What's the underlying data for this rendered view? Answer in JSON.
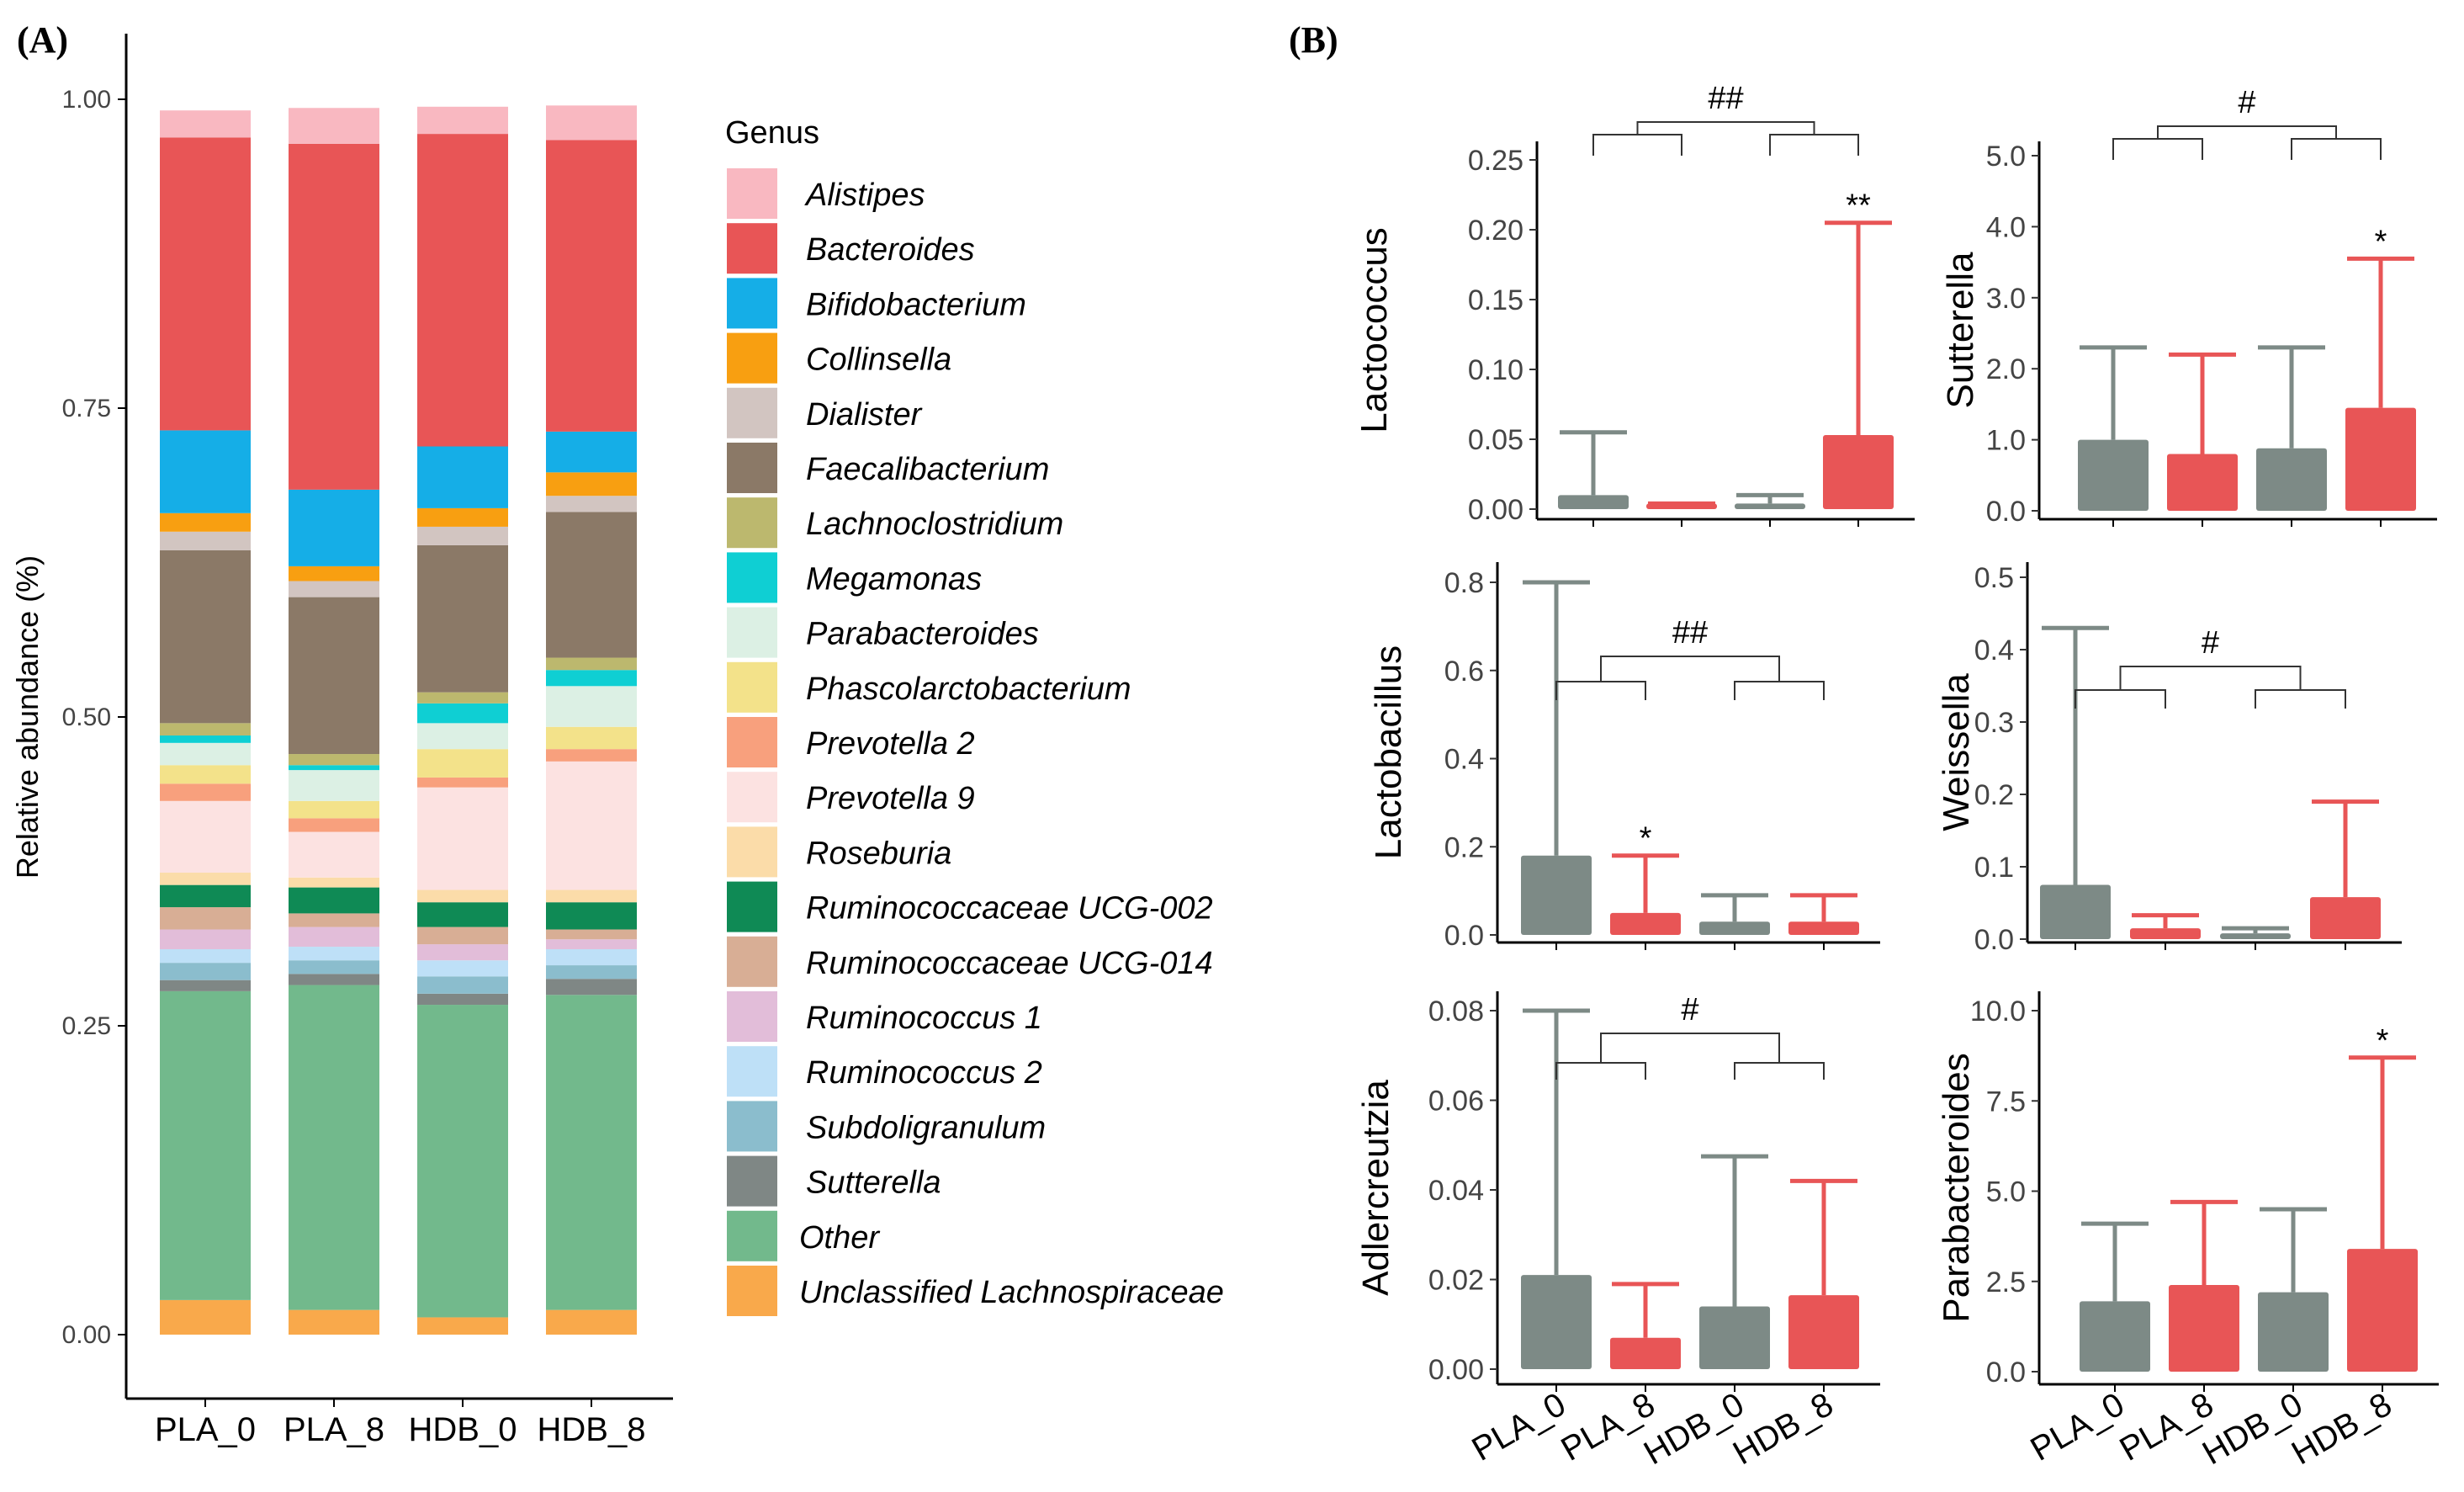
{
  "panels": {
    "a_label": "(A)",
    "b_label": "(B)"
  },
  "chart_data": [
    {
      "type": "bar",
      "stacked": true,
      "panel": "(A)",
      "ylabel": "Relative abundance (%)",
      "ylim": [
        0,
        1
      ],
      "yticks": [
        "0.00",
        "0.25",
        "0.50",
        "0.75",
        "1.00"
      ],
      "categories": [
        "PLA_0",
        "PLA_8",
        "HDB_0",
        "HDB_8"
      ],
      "legend_title": "Genus",
      "series": [
        {
          "name": "Unclassified  Lachnospiraceae",
          "color": "#F9A94B",
          "values": [
            0.028,
            0.02,
            0.014,
            0.02
          ]
        },
        {
          "name": "Other",
          "color": "#72B98C",
          "values": [
            0.25,
            0.263,
            0.253,
            0.255
          ]
        },
        {
          "name": "Sutterella",
          "color": "#7F8785",
          "values": [
            0.009,
            0.009,
            0.009,
            0.013
          ]
        },
        {
          "name": "Subdoligranulum",
          "color": "#8BBDCD",
          "values": [
            0.014,
            0.011,
            0.014,
            0.011
          ]
        },
        {
          "name": "Ruminococcus 2",
          "color": "#BEE0F7",
          "values": [
            0.011,
            0.011,
            0.013,
            0.013
          ]
        },
        {
          "name": "Ruminococcus 1",
          "color": "#E2BDD9",
          "values": [
            0.016,
            0.016,
            0.013,
            0.008
          ]
        },
        {
          "name": "Ruminococcaceae UCG-014",
          "color": "#D8AE95",
          "values": [
            0.018,
            0.011,
            0.014,
            0.008
          ]
        },
        {
          "name": "Ruminococcaceae UCG-002",
          "color": "#0F8A55",
          "values": [
            0.018,
            0.021,
            0.02,
            0.022
          ]
        },
        {
          "name": "Roseburia",
          "color": "#FBDCA9",
          "values": [
            0.01,
            0.008,
            0.01,
            0.01
          ]
        },
        {
          "name": "Prevotella 9",
          "color": "#FCE2E1",
          "values": [
            0.058,
            0.037,
            0.083,
            0.104
          ]
        },
        {
          "name": "Prevotella 2",
          "color": "#F8A07D",
          "values": [
            0.014,
            0.011,
            0.008,
            0.01
          ]
        },
        {
          "name": "Phascolarctobacterium",
          "color": "#F3E28A",
          "values": [
            0.015,
            0.014,
            0.023,
            0.018
          ]
        },
        {
          "name": "Parabacteroides",
          "color": "#DCF0E4",
          "values": [
            0.018,
            0.025,
            0.021,
            0.033
          ]
        },
        {
          "name": "Megamonas",
          "color": "#0FCFD3",
          "values": [
            0.006,
            0.004,
            0.016,
            0.013
          ]
        },
        {
          "name": "Lachnoclostridium",
          "color": "#BCB86E",
          "values": [
            0.01,
            0.009,
            0.009,
            0.01
          ]
        },
        {
          "name": "Faecalibacterium",
          "color": "#8B7967",
          "values": [
            0.14,
            0.127,
            0.119,
            0.118
          ]
        },
        {
          "name": "Dialister",
          "color": "#D2C5C1",
          "values": [
            0.015,
            0.013,
            0.015,
            0.013
          ]
        },
        {
          "name": "Collinsella",
          "color": "#F89F11",
          "values": [
            0.015,
            0.012,
            0.015,
            0.019
          ]
        },
        {
          "name": "Bifidobacterium",
          "color": "#15AEE7",
          "values": [
            0.067,
            0.062,
            0.05,
            0.033
          ]
        },
        {
          "name": "Bacteroides",
          "color": "#E85556",
          "values": [
            0.237,
            0.28,
            0.253,
            0.236
          ]
        },
        {
          "name": "Alistipes",
          "color": "#F9B8C1",
          "values": [
            0.022,
            0.029,
            0.022,
            0.028
          ]
        }
      ],
      "legend_order": [
        "Alistipes",
        "Bacteroides",
        "Bifidobacterium",
        "Collinsella",
        "Dialister",
        "Faecalibacterium",
        "Lachnoclostridium",
        "Megamonas",
        "Parabacteroides",
        "Phascolarctobacterium",
        "Prevotella 2",
        "Prevotella 9",
        "Roseburia",
        "Ruminococcaceae UCG-002",
        "Ruminococcaceae UCG-014",
        "Ruminococcus 1",
        "Ruminococcus 2",
        "Subdoligranulum",
        "Sutterella",
        "Other",
        "Unclassified  Lachnospiraceae"
      ]
    },
    {
      "type": "bar",
      "panel": "(B)",
      "ylabel": "Lactococcus",
      "ylim": [
        0,
        0.26
      ],
      "yticks": [
        "0.00",
        "0.05",
        "0.10",
        "0.15",
        "0.20",
        "0.25"
      ],
      "categories": [
        "PLA_0",
        "PLA_8",
        "HDB_0",
        "HDB_8"
      ],
      "values": [
        0.01,
        0.004,
        0.004,
        0.053
      ],
      "error_upper": [
        0.055,
        0.004,
        0.01,
        0.205
      ],
      "significance": {
        "bar_marks": [
          "",
          "",
          "",
          "**"
        ],
        "group": "##"
      }
    },
    {
      "type": "bar",
      "panel": "(B)",
      "ylabel": "Sutterella",
      "ylim": [
        0,
        5.2
      ],
      "yticks": [
        "0.0",
        "1.0",
        "2.0",
        "3.0",
        "4.0",
        "5.0"
      ],
      "categories": [
        "PLA_0",
        "PLA_8",
        "HDB_0",
        "HDB_8"
      ],
      "values": [
        1.0,
        0.8,
        0.88,
        1.45
      ],
      "error_upper": [
        2.3,
        2.2,
        2.3,
        3.55
      ],
      "significance": {
        "bar_marks": [
          "",
          "",
          "",
          "*"
        ],
        "group": "#"
      }
    },
    {
      "type": "bar",
      "panel": "(B)",
      "ylabel": "Lactobacillus",
      "ylim": [
        0,
        0.82
      ],
      "yticks": [
        "0.0",
        "0.2",
        "0.4",
        "0.6",
        "0.8"
      ],
      "categories": [
        "PLA_0",
        "PLA_8",
        "HDB_0",
        "HDB_8"
      ],
      "values": [
        0.18,
        0.05,
        0.03,
        0.03
      ],
      "error_upper": [
        0.8,
        0.18,
        0.09,
        0.09
      ],
      "significance": {
        "bar_marks": [
          "",
          "*",
          "",
          ""
        ],
        "group": "##"
      }
    },
    {
      "type": "bar",
      "panel": "(B)",
      "ylabel": "Weissella",
      "ylim": [
        0,
        0.52
      ],
      "yticks": [
        "0.0",
        "0.1",
        "0.2",
        "0.3",
        "0.4",
        "0.5"
      ],
      "categories": [
        "PLA_0",
        "PLA_8",
        "HDB_0",
        "HDB_8"
      ],
      "values": [
        0.075,
        0.015,
        0.008,
        0.058
      ],
      "error_upper": [
        0.43,
        0.033,
        0.015,
        0.19
      ],
      "significance": {
        "bar_marks": [
          "",
          "",
          "",
          ""
        ],
        "group": "#"
      }
    },
    {
      "type": "bar",
      "panel": "(B)",
      "ylabel": "Adlercreutzia",
      "ylim": [
        0,
        0.082
      ],
      "yticks": [
        "0.00",
        "0.02",
        "0.04",
        "0.06",
        "0.08"
      ],
      "categories": [
        "PLA_0",
        "PLA_8",
        "HDB_0",
        "HDB_8"
      ],
      "values": [
        0.021,
        0.007,
        0.014,
        0.0165
      ],
      "error_upper": [
        0.08,
        0.019,
        0.0475,
        0.042
      ],
      "significance": {
        "bar_marks": [
          "",
          "",
          "",
          ""
        ],
        "group": "#"
      }
    },
    {
      "type": "bar",
      "panel": "(B)",
      "ylabel": "Parabacteroides",
      "ylim": [
        0,
        10.5
      ],
      "yticks": [
        "0.0",
        "2.5",
        "5.0",
        "7.5",
        "10.0"
      ],
      "categories": [
        "PLA_0",
        "PLA_8",
        "HDB_0",
        "HDB_8"
      ],
      "values": [
        1.95,
        2.4,
        2.2,
        3.4
      ],
      "error_upper": [
        4.1,
        4.7,
        4.5,
        8.7
      ],
      "significance": {
        "bar_marks": [
          "",
          "",
          "",
          "*"
        ],
        "group": ""
      }
    }
  ],
  "colors": {
    "group_0": "#7D8A86",
    "group_8": "#E85556"
  }
}
